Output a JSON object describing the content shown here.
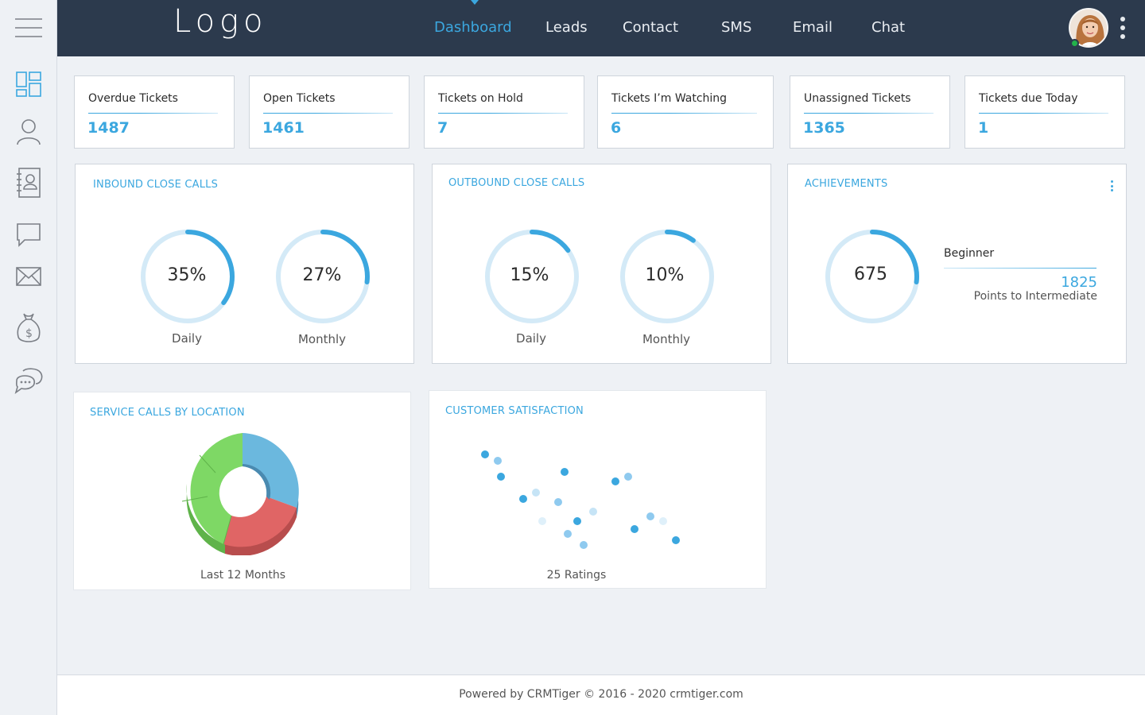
{
  "header": {
    "logo": "Logo",
    "nav": [
      {
        "label": "Dashboard",
        "active": true
      },
      {
        "label": "Leads"
      },
      {
        "label": "Contact"
      },
      {
        "label": "SMS"
      },
      {
        "label": "Email"
      },
      {
        "label": "Chat"
      }
    ],
    "user_status": "online"
  },
  "sidebar": {
    "items": [
      {
        "icon": "menu-icon"
      },
      {
        "icon": "dashboard-icon",
        "active": true
      },
      {
        "icon": "user-icon"
      },
      {
        "icon": "contacts-book-icon"
      },
      {
        "icon": "chat-bubble-icon"
      },
      {
        "icon": "mail-icon"
      },
      {
        "icon": "money-bag-icon"
      },
      {
        "icon": "conversation-icon"
      }
    ]
  },
  "tickets": [
    {
      "label": "Overdue Tickets",
      "value": "1487"
    },
    {
      "label": "Open Tickets",
      "value": "1461"
    },
    {
      "label": "Tickets on Hold",
      "value": "7"
    },
    {
      "label": "Tickets I’m Watching",
      "value": "6"
    },
    {
      "label": "Unassigned Tickets",
      "value": "1365"
    },
    {
      "label": "Tickets due Today",
      "value": "1"
    }
  ],
  "inbound": {
    "title": "INBOUND CLOSE CALLS",
    "daily": {
      "value": "35%",
      "fraction": 0.35,
      "caption": "Daily"
    },
    "monthly": {
      "value": "27%",
      "fraction": 0.27,
      "caption": "Monthly"
    }
  },
  "outbound": {
    "title": "OUTBOUND CLOSE CALLS",
    "daily": {
      "value": "15%",
      "fraction": 0.15,
      "caption": "Daily"
    },
    "monthly": {
      "value": "10%",
      "fraction": 0.1,
      "caption": "Monthly"
    }
  },
  "achievements": {
    "title": "ACHIEVEMENTS",
    "score": "675",
    "fraction": 0.27,
    "level": "Beginner",
    "points": "1825",
    "points_label": "Points to Intermediate"
  },
  "service_calls": {
    "title": "SERVICE CALLS BY LOCATION",
    "caption": "Last 12 Months"
  },
  "satisfaction": {
    "title": "CUSTOMER SATISFACTION",
    "caption": "25 Ratings"
  },
  "footer": {
    "text": "Powered by CRMTiger © 2016 - 2020  crmtiger.com"
  },
  "colors": {
    "accent": "#3ba7df",
    "topbar": "#2c3a4d",
    "ring_track": "#d4eaf7",
    "pie_blue": "#6bb8de",
    "pie_red": "#e06565",
    "pie_green": "#7ed865"
  },
  "chart_data": [
    {
      "type": "pie",
      "title": "SERVICE CALLS BY LOCATION",
      "categories": [
        "Blue",
        "Red",
        "Green"
      ],
      "values": [
        37,
        28,
        35
      ]
    },
    {
      "type": "scatter",
      "title": "CUSTOMER SATISFACTION",
      "series": [
        {
          "name": "",
          "points": [
            {
              "x": 1,
              "y": 10,
              "shade": "dark"
            },
            {
              "x": 1.4,
              "y": 9.6,
              "shade": "mid"
            },
            {
              "x": 1.5,
              "y": 8.6,
              "shade": "dark"
            },
            {
              "x": 2.2,
              "y": 7.2,
              "shade": "dark"
            },
            {
              "x": 2.6,
              "y": 7.6,
              "shade": "light"
            },
            {
              "x": 2.8,
              "y": 5.8,
              "shade": "faint"
            },
            {
              "x": 3.3,
              "y": 7.0,
              "shade": "mid"
            },
            {
              "x": 3.5,
              "y": 8.9,
              "shade": "dark"
            },
            {
              "x": 3.6,
              "y": 5.0,
              "shade": "mid"
            },
            {
              "x": 3.9,
              "y": 5.8,
              "shade": "dark"
            },
            {
              "x": 4.1,
              "y": 4.3,
              "shade": "mid"
            },
            {
              "x": 4.4,
              "y": 6.4,
              "shade": "light"
            },
            {
              "x": 5.1,
              "y": 8.3,
              "shade": "dark"
            },
            {
              "x": 5.5,
              "y": 8.6,
              "shade": "mid"
            },
            {
              "x": 5.7,
              "y": 5.3,
              "shade": "dark"
            },
            {
              "x": 6.2,
              "y": 6.1,
              "shade": "mid"
            },
            {
              "x": 6.6,
              "y": 5.8,
              "shade": "faint"
            },
            {
              "x": 7.0,
              "y": 4.6,
              "shade": "dark"
            }
          ]
        }
      ]
    }
  ]
}
